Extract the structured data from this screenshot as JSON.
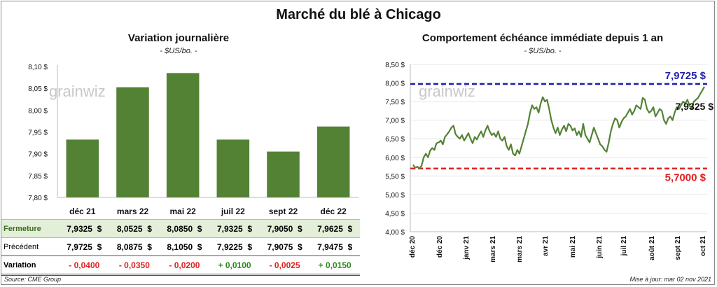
{
  "title": "Marché du blé à Chicago",
  "colors": {
    "bar": "#548235",
    "line": "#548235",
    "high": "#2020b0",
    "low": "#e02020"
  },
  "chart_data": [
    {
      "type": "bar",
      "title": "Variation journalière",
      "unit": "- $US/bo. -",
      "categories": [
        "déc 21",
        "mars 22",
        "mai 22",
        "juil 22",
        "sept 22",
        "déc 22"
      ],
      "values": [
        7.9325,
        8.0525,
        8.085,
        7.9325,
        7.905,
        7.9625
      ],
      "ylim": [
        7.8,
        8.1
      ],
      "yticks": [
        "7,80 $",
        "7,85 $",
        "7,90 $",
        "7,95 $",
        "8,00 $",
        "8,05 $",
        "8,10 $"
      ],
      "watermark": "grainwiz"
    },
    {
      "type": "line",
      "title": "Comportement  échéance immédiate depuis 1 an",
      "unit": "- $US/bo. -",
      "ylim": [
        4.0,
        8.5
      ],
      "yticks": [
        "4,00 $",
        "4,50 $",
        "5,00 $",
        "5,50 $",
        "6,00 $",
        "6,50 $",
        "7,00 $",
        "7,50 $",
        "8,00 $",
        "8,50 $"
      ],
      "xticks": [
        "déc 20",
        "déc 20",
        "janv 21",
        "mars 21",
        "mars 21",
        "avr 21",
        "mai 21",
        "juin 21",
        "juil 21",
        "août 21",
        "sept 21",
        "oct 21"
      ],
      "series": [
        {
          "name": "Échéance immédiate",
          "values": [
            5.8,
            5.72,
            5.75,
            5.7,
            5.78,
            6.0,
            6.1,
            6.0,
            6.18,
            6.25,
            6.2,
            6.38,
            6.4,
            6.45,
            6.35,
            6.55,
            6.62,
            6.7,
            6.8,
            6.85,
            6.62,
            6.55,
            6.5,
            6.6,
            6.45,
            6.55,
            6.65,
            6.5,
            6.38,
            6.55,
            6.48,
            6.6,
            6.7,
            6.55,
            6.72,
            6.85,
            6.7,
            6.6,
            6.65,
            6.55,
            6.7,
            6.5,
            6.45,
            6.55,
            6.3,
            6.2,
            6.35,
            6.1,
            6.05,
            6.2,
            6.1,
            6.3,
            6.5,
            6.7,
            6.9,
            7.2,
            7.4,
            7.3,
            7.35,
            7.2,
            7.45,
            7.62,
            7.5,
            7.55,
            7.3,
            7.0,
            6.8,
            6.65,
            6.8,
            6.6,
            6.75,
            6.85,
            6.7,
            6.9,
            6.85,
            6.72,
            6.78,
            6.6,
            6.7,
            6.55,
            6.9,
            6.6,
            6.5,
            6.4,
            6.6,
            6.8,
            6.65,
            6.5,
            6.35,
            6.3,
            6.2,
            6.15,
            6.4,
            6.7,
            6.9,
            7.05,
            7.0,
            6.8,
            6.95,
            7.05,
            7.1,
            7.2,
            7.3,
            7.15,
            7.25,
            7.4,
            7.35,
            7.3,
            7.6,
            7.55,
            7.3,
            7.2,
            7.25,
            7.35,
            7.1,
            7.2,
            7.3,
            7.25,
            7.0,
            6.9,
            7.05,
            7.1,
            7.0,
            7.2,
            7.35,
            7.3,
            7.4,
            7.5,
            7.45,
            7.55,
            7.4,
            7.3,
            7.5,
            7.55,
            7.6,
            7.7,
            7.8,
            7.9
          ]
        }
      ],
      "reference_lines": [
        {
          "label": "7,9725 $",
          "value": 7.9725
        },
        {
          "label": "5,7000 $",
          "value": 5.7
        }
      ],
      "last_label": "7,9325 $",
      "watermark": "grainwiz"
    }
  ],
  "table": {
    "rows": [
      {
        "label": "Fermeture",
        "values": [
          "7,9325  $",
          "8,0525  $",
          "8,0850  $",
          "7,9325  $",
          "7,9050  $",
          "7,9625  $"
        ]
      },
      {
        "label": "Précédent",
        "values": [
          "7,9725  $",
          "8,0875  $",
          "8,1050  $",
          "7,9225  $",
          "7,9075  $",
          "7,9475  $"
        ]
      },
      {
        "label": "Variation",
        "values": [
          "- 0,0400",
          "- 0,0350",
          "- 0,0200",
          "+ 0,0100",
          "- 0,0025",
          "+ 0,0150"
        ]
      }
    ]
  },
  "footer": {
    "source": "Source: CME Group",
    "update": "Mise à jour: mar 02 nov 2021"
  }
}
